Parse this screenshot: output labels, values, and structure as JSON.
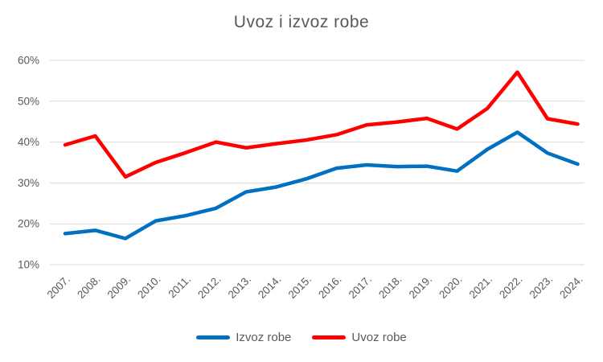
{
  "title": "Uvoz i izvoz robe",
  "colors": {
    "izvoz_blue": "#0070C0",
    "uvoz_red": "#FF0000",
    "gridline": "#D9D9D9",
    "text_gray": "#595959",
    "background": "#FFFFFF"
  },
  "chart_data": {
    "type": "line",
    "title": "Uvoz i izvoz robe",
    "xlabel": "",
    "ylabel": "",
    "categories": [
      "2007.",
      "2008.",
      "2009.",
      "2010.",
      "2011.",
      "2012.",
      "2013.",
      "2014.",
      "2015.",
      "2016.",
      "2017.",
      "2018.",
      "2019.",
      "2020.",
      "2021.",
      "2022.",
      "2023.",
      "2024."
    ],
    "series": [
      {
        "name": "Izvoz robe",
        "color": "#0070C0",
        "values": [
          17.6,
          18.4,
          16.4,
          20.7,
          22.0,
          23.8,
          27.8,
          29.0,
          31.0,
          33.6,
          34.4,
          34.0,
          34.1,
          32.9,
          38.2,
          42.4,
          37.3,
          34.6
        ]
      },
      {
        "name": "Uvoz robe",
        "color": "#FF0000",
        "values": [
          39.3,
          41.5,
          31.5,
          35.0,
          37.4,
          40.0,
          38.6,
          39.6,
          40.5,
          41.8,
          44.2,
          44.9,
          45.8,
          43.2,
          48.2,
          57.1,
          45.7,
          44.4
        ]
      }
    ],
    "ylim": [
      10,
      60
    ],
    "yticks": [
      10,
      20,
      30,
      40,
      50,
      60
    ],
    "ytick_labels": [
      "10%",
      "20%",
      "30%",
      "40%",
      "50%",
      "60%"
    ],
    "ytick_suffix": "%",
    "grid": true,
    "legend_position": "bottom",
    "x_labels_rotated_degrees": 45
  }
}
